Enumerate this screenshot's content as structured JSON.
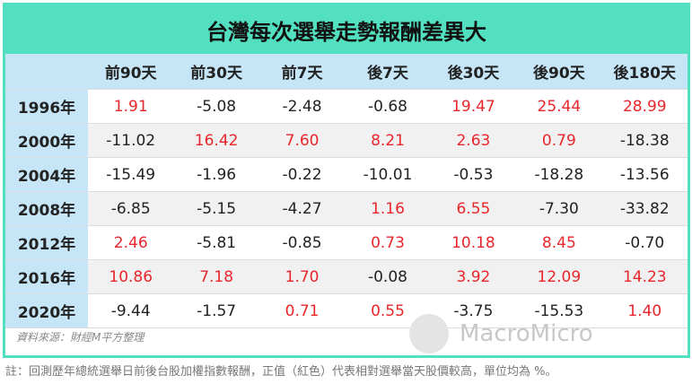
{
  "title": "台灣每次選舉走勢報酬差異大",
  "table": {
    "header": [
      "前90天",
      "前30天",
      "前7天",
      "後7天",
      "後30天",
      "後90天",
      "後180天"
    ],
    "rows": [
      {
        "label": "1996年",
        "cells": [
          "1.91",
          "-5.08",
          "-2.48",
          "-0.68",
          "19.47",
          "25.44",
          "28.99"
        ]
      },
      {
        "label": "2000年",
        "cells": [
          "-11.02",
          "16.42",
          "7.60",
          "8.21",
          "2.63",
          "0.79",
          "-18.38"
        ]
      },
      {
        "label": "2004年",
        "cells": [
          "-15.49",
          "-1.96",
          "-0.22",
          "-10.01",
          "-0.53",
          "-18.28",
          "-13.56"
        ]
      },
      {
        "label": "2008年",
        "cells": [
          "-6.85",
          "-5.15",
          "-4.27",
          "1.16",
          "6.55",
          "-7.30",
          "-33.82"
        ]
      },
      {
        "label": "2012年",
        "cells": [
          "2.46",
          "-5.81",
          "-0.85",
          "0.73",
          "10.18",
          "8.45",
          "-0.70"
        ]
      },
      {
        "label": "2016年",
        "cells": [
          "10.86",
          "7.18",
          "1.70",
          "-0.08",
          "3.92",
          "12.09",
          "14.23"
        ]
      },
      {
        "label": "2020年",
        "cells": [
          "-9.44",
          "-1.57",
          "0.71",
          "0.55",
          "-3.75",
          "-15.53",
          "1.40"
        ]
      }
    ],
    "positive_color": "#e8262b",
    "negative_color": "#222222"
  },
  "source": "資料來源：財經M平方整理",
  "watermark": "MacroMicro",
  "note": "註：回測歷年總統選舉日前後台股加權指數報酬，正值（紅色）代表相對選舉當天股價較高，單位均為 %。"
}
